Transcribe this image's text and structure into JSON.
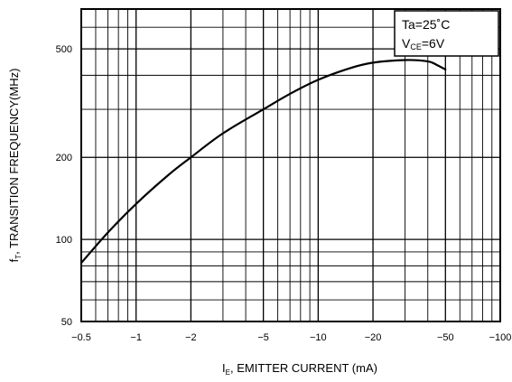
{
  "chart_data": {
    "type": "line",
    "x_scale": "log",
    "y_scale": "log",
    "xlim": [
      -0.5,
      -100
    ],
    "ylim": [
      50,
      700
    ],
    "x_ticks": [
      -0.5,
      -1,
      -2,
      -5,
      -10,
      -20,
      -50,
      -100
    ],
    "x_tick_labels": [
      "−0.5",
      "−1",
      "−2",
      "−5",
      "−10",
      "−20",
      "−50",
      "−100"
    ],
    "y_ticks": [
      50,
      100,
      200,
      500
    ],
    "y_tick_labels": [
      "50",
      "100",
      "200",
      "500"
    ],
    "x_grid": [
      -0.5,
      -0.6,
      -0.7,
      -0.8,
      -0.9,
      -1,
      -2,
      -3,
      -4,
      -5,
      -6,
      -7,
      -8,
      -9,
      -10,
      -20,
      -30,
      -40,
      -50,
      -60,
      -70,
      -80,
      -90,
      -100
    ],
    "y_grid": [
      50,
      60,
      70,
      80,
      90,
      100,
      200,
      300,
      400,
      500,
      600,
      700
    ],
    "grid": true,
    "xlabel": {
      "prefix": "I",
      "subscript": "E",
      "rest": ", EMITTER CURRENT  (mA)"
    },
    "ylabel": {
      "prefix": "f",
      "subscript": "T",
      "rest": ", TRANSITION FREQUENCY(MHz)"
    },
    "legend": {
      "line1": "Ta=25˚C",
      "line2_main": "V",
      "line2_sub": "CE",
      "line2_rest": "=6V",
      "placement": "top-right"
    },
    "series": [
      {
        "x": [
          -0.5,
          -0.7,
          -1,
          -1.5,
          -2,
          -3,
          -5,
          -7,
          -10,
          -15,
          -20,
          -30,
          -40,
          -45,
          -50
        ],
        "y": [
          82,
          106,
          135,
          172,
          200,
          245,
          300,
          342,
          385,
          425,
          445,
          455,
          450,
          436,
          420
        ]
      }
    ]
  }
}
